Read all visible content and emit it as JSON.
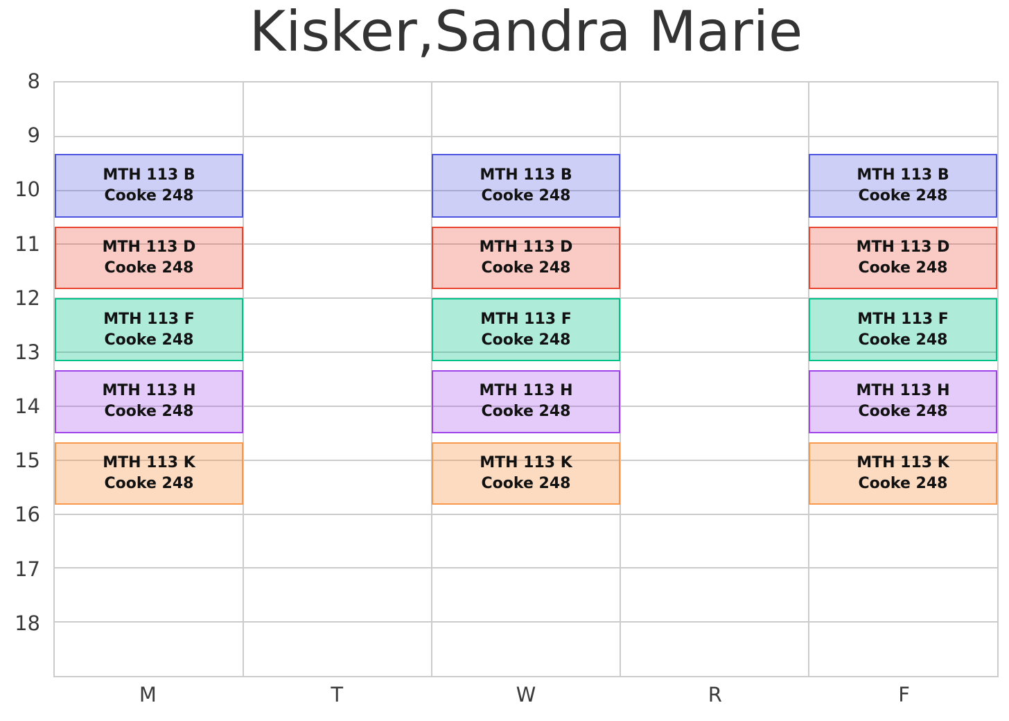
{
  "chart_data": {
    "type": "bar",
    "subtype": "weekly-schedule-timetable",
    "title": "Kisker,Sandra Marie",
    "xlabel": "",
    "ylabel": "",
    "categories": [
      "M",
      "T",
      "W",
      "R",
      "F"
    ],
    "y_ticks": [
      8,
      9,
      10,
      11,
      12,
      13,
      14,
      15,
      16,
      17,
      18
    ],
    "ylim": [
      8,
      19
    ],
    "y_direction": "down",
    "grid": true,
    "legend": "none",
    "events": [
      {
        "course": "MTH 113 B",
        "room": "Cooke 248",
        "days": [
          "M",
          "W",
          "F"
        ],
        "start_hour": 9.33,
        "end_hour": 10.5,
        "border_color": "#4a54e1",
        "fill_color": "rgba(74,84,225,0.28)"
      },
      {
        "course": "MTH 113 D",
        "room": "Cooke 248",
        "days": [
          "M",
          "W",
          "F"
        ],
        "start_hour": 10.67,
        "end_hour": 11.83,
        "border_color": "#e8432c",
        "fill_color": "rgba(232,67,44,0.28)"
      },
      {
        "course": "MTH 113 F",
        "room": "Cooke 248",
        "days": [
          "M",
          "W",
          "F"
        ],
        "start_hour": 12.0,
        "end_hour": 13.17,
        "border_color": "#02c289",
        "fill_color": "rgba(2,194,137,0.32)"
      },
      {
        "course": "MTH 113 H",
        "room": "Cooke 248",
        "days": [
          "M",
          "W",
          "F"
        ],
        "start_hour": 13.33,
        "end_hour": 14.5,
        "border_color": "#9d43e9",
        "fill_color": "rgba(157,67,233,0.28)"
      },
      {
        "course": "MTH 113 K",
        "room": "Cooke 248",
        "days": [
          "M",
          "W",
          "F"
        ],
        "start_hour": 14.67,
        "end_hour": 15.83,
        "border_color": "#f8984d",
        "fill_color": "rgba(248,152,77,0.35)"
      }
    ],
    "colors": {
      "grid": "#cbcbcb",
      "tick_text": "#3a3a3a",
      "title_text": "#333333",
      "block_text": "#111111",
      "background": "#ffffff"
    }
  }
}
